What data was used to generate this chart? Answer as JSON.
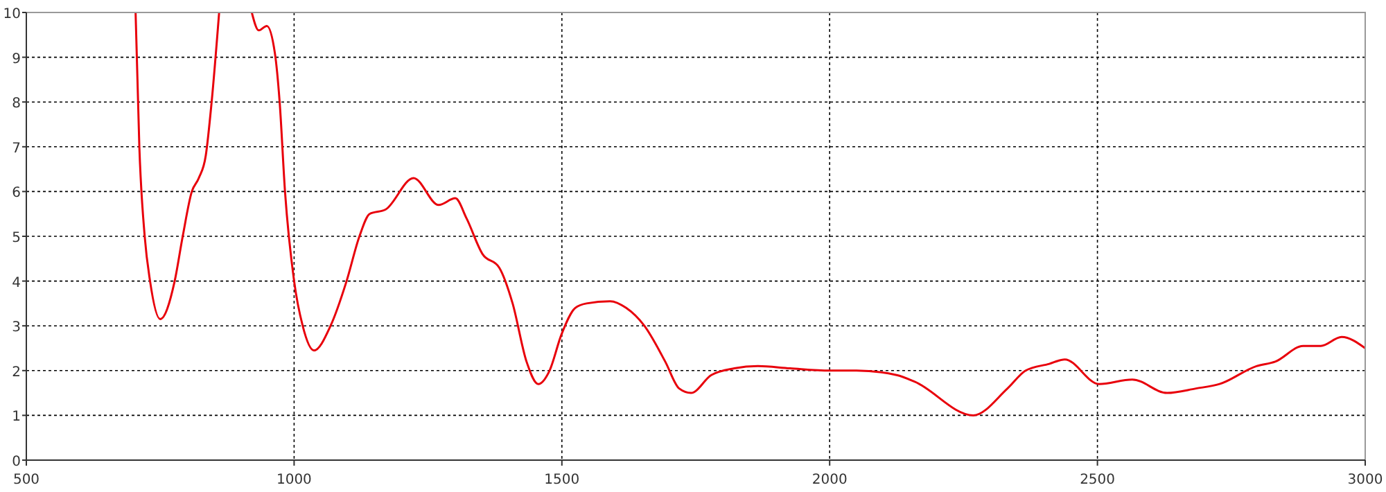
{
  "chart_data": {
    "type": "line",
    "xlim": [
      500,
      3000
    ],
    "ylim": [
      0,
      10
    ],
    "xticks": [
      500,
      1000,
      1500,
      2000,
      2500,
      3000
    ],
    "yticks": [
      0,
      1,
      2,
      3,
      4,
      5,
      6,
      7,
      8,
      9,
      10
    ],
    "grid": true,
    "series": [
      {
        "color": "#e8000b",
        "line_style": "solid",
        "x": [
          704,
          711,
          721,
          731,
          750,
          777,
          792,
          809,
          822,
          835,
          846,
          860,
          890,
          921,
          934,
          949,
          964,
          973,
          983,
          1000,
          1016,
          1037,
          1068,
          1098,
          1122,
          1141,
          1171,
          1223,
          1270,
          1301,
          1322,
          1352,
          1383,
          1408,
          1434,
          1456,
          1477,
          1499,
          1525,
          1546,
          1590,
          1620,
          1654,
          1693,
          1719,
          1741,
          1779,
          1822,
          1866,
          1926,
          2000,
          2050,
          2125,
          2159,
          2268,
          2332,
          2366,
          2410,
          2439,
          2503,
          2565,
          2630,
          2684,
          2728,
          2797,
          2832,
          2884,
          2917,
          2956,
          3000
        ],
        "values": [
          10,
          7,
          5,
          4,
          3.15,
          4,
          5,
          6,
          6.3,
          6.8,
          8,
          10,
          null,
          10,
          9.6,
          9.7,
          9.1,
          8,
          6,
          4,
          3,
          2.45,
          3,
          4,
          5,
          5.5,
          5.6,
          6.3,
          5.7,
          5.85,
          5.4,
          4.6,
          4.3,
          3.5,
          2.2,
          1.7,
          2,
          2.8,
          3.4,
          3.5,
          3.55,
          3.4,
          3,
          2.2,
          1.6,
          1.5,
          1.9,
          2.05,
          2.1,
          2.05,
          2,
          2,
          1.9,
          1.75,
          1,
          1.6,
          2,
          2.15,
          2.25,
          1.7,
          1.8,
          1.5,
          1.6,
          1.7,
          2.1,
          2.2,
          2.55,
          2.55,
          2.75,
          2.5
        ]
      }
    ]
  }
}
